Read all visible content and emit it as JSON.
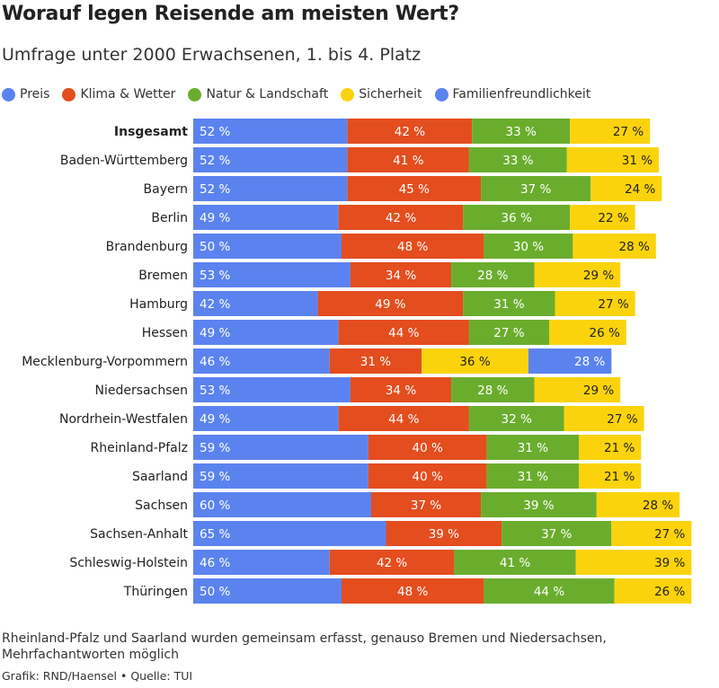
{
  "title": "Worauf legen Reisende am meisten Wert?",
  "subtitle": "Umfrage unter 2000 Erwachsenen, 1. bis 4. Platz",
  "note": "Rheinland-Pfalz und Saarland wurden gemeinsam erfasst, genauso Bremen und Niedersachsen, Mehrfachantworten möglich",
  "credit": "Grafik: RND/Haensel • Quelle: TUI",
  "value_suffix": " %",
  "colors": {
    "Preis": "#5b83ef",
    "Klima & Wetter": "#e44d1e",
    "Natur & Landschaft": "#6aad2d",
    "Sicherheit": "#fbd30c",
    "Familienfreundlichkeit": "#5b83ef"
  },
  "legend": [
    {
      "label": "Preis",
      "color": "#5b83ef"
    },
    {
      "label": "Klima & Wetter",
      "color": "#e44d1e"
    },
    {
      "label": "Natur & Landschaft",
      "color": "#6aad2d"
    },
    {
      "label": "Sicherheit",
      "color": "#fbd30c"
    },
    {
      "label": "Familienfreundlichkeit",
      "color": "#5b83ef"
    }
  ],
  "chart_data": {
    "type": "bar",
    "orientation": "horizontal",
    "stacked": true,
    "unit": "%",
    "bold_category": "Insgesamt",
    "categories": [
      "Insgesamt",
      "Baden-Württemberg",
      "Bayern",
      "Berlin",
      "Brandenburg",
      "Bremen",
      "Hamburg",
      "Hessen",
      "Mecklenburg-Vorpommern",
      "Niedersachsen",
      "Nordrhein-Westfalen",
      "Rheinland-Pfalz",
      "Saarland",
      "Sachsen",
      "Sachsen-Anhalt",
      "Schleswig-Holstein",
      "Thüringen"
    ],
    "stacks": [
      [
        {
          "series": "Preis",
          "value": 52
        },
        {
          "series": "Klima & Wetter",
          "value": 42
        },
        {
          "series": "Natur & Landschaft",
          "value": 33
        },
        {
          "series": "Sicherheit",
          "value": 27
        }
      ],
      [
        {
          "series": "Preis",
          "value": 52
        },
        {
          "series": "Klima & Wetter",
          "value": 41
        },
        {
          "series": "Natur & Landschaft",
          "value": 33
        },
        {
          "series": "Sicherheit",
          "value": 31
        }
      ],
      [
        {
          "series": "Preis",
          "value": 52
        },
        {
          "series": "Klima & Wetter",
          "value": 45
        },
        {
          "series": "Natur & Landschaft",
          "value": 37
        },
        {
          "series": "Sicherheit",
          "value": 24
        }
      ],
      [
        {
          "series": "Preis",
          "value": 49
        },
        {
          "series": "Klima & Wetter",
          "value": 42
        },
        {
          "series": "Natur & Landschaft",
          "value": 36
        },
        {
          "series": "Sicherheit",
          "value": 22
        }
      ],
      [
        {
          "series": "Preis",
          "value": 50
        },
        {
          "series": "Klima & Wetter",
          "value": 48
        },
        {
          "series": "Natur & Landschaft",
          "value": 30
        },
        {
          "series": "Sicherheit",
          "value": 28
        }
      ],
      [
        {
          "series": "Preis",
          "value": 53
        },
        {
          "series": "Klima & Wetter",
          "value": 34
        },
        {
          "series": "Natur & Landschaft",
          "value": 28
        },
        {
          "series": "Sicherheit",
          "value": 29
        }
      ],
      [
        {
          "series": "Preis",
          "value": 42
        },
        {
          "series": "Klima & Wetter",
          "value": 49
        },
        {
          "series": "Natur & Landschaft",
          "value": 31
        },
        {
          "series": "Sicherheit",
          "value": 27
        }
      ],
      [
        {
          "series": "Preis",
          "value": 49
        },
        {
          "series": "Klima & Wetter",
          "value": 44
        },
        {
          "series": "Natur & Landschaft",
          "value": 27
        },
        {
          "series": "Sicherheit",
          "value": 26
        }
      ],
      [
        {
          "series": "Preis",
          "value": 46
        },
        {
          "series": "Klima & Wetter",
          "value": 31
        },
        {
          "series": "Sicherheit",
          "value": 36
        },
        {
          "series": "Familienfreundlichkeit",
          "value": 28
        }
      ],
      [
        {
          "series": "Preis",
          "value": 53
        },
        {
          "series": "Klima & Wetter",
          "value": 34
        },
        {
          "series": "Natur & Landschaft",
          "value": 28
        },
        {
          "series": "Sicherheit",
          "value": 29
        }
      ],
      [
        {
          "series": "Preis",
          "value": 49
        },
        {
          "series": "Klima & Wetter",
          "value": 44
        },
        {
          "series": "Natur & Landschaft",
          "value": 32
        },
        {
          "series": "Sicherheit",
          "value": 27
        }
      ],
      [
        {
          "series": "Preis",
          "value": 59
        },
        {
          "series": "Klima & Wetter",
          "value": 40
        },
        {
          "series": "Natur & Landschaft",
          "value": 31
        },
        {
          "series": "Sicherheit",
          "value": 21
        }
      ],
      [
        {
          "series": "Preis",
          "value": 59
        },
        {
          "series": "Klima & Wetter",
          "value": 40
        },
        {
          "series": "Natur & Landschaft",
          "value": 31
        },
        {
          "series": "Sicherheit",
          "value": 21
        }
      ],
      [
        {
          "series": "Preis",
          "value": 60
        },
        {
          "series": "Klima & Wetter",
          "value": 37
        },
        {
          "series": "Natur & Landschaft",
          "value": 39
        },
        {
          "series": "Sicherheit",
          "value": 28
        }
      ],
      [
        {
          "series": "Preis",
          "value": 65
        },
        {
          "series": "Klima & Wetter",
          "value": 39
        },
        {
          "series": "Natur & Landschaft",
          "value": 37
        },
        {
          "series": "Sicherheit",
          "value": 27
        }
      ],
      [
        {
          "series": "Preis",
          "value": 46
        },
        {
          "series": "Klima & Wetter",
          "value": 42
        },
        {
          "series": "Natur & Landschaft",
          "value": 41
        },
        {
          "series": "Sicherheit",
          "value": 39
        }
      ],
      [
        {
          "series": "Preis",
          "value": 50
        },
        {
          "series": "Klima & Wetter",
          "value": 48
        },
        {
          "series": "Natur & Landschaft",
          "value": 44
        },
        {
          "series": "Sicherheit",
          "value": 26
        }
      ]
    ]
  }
}
